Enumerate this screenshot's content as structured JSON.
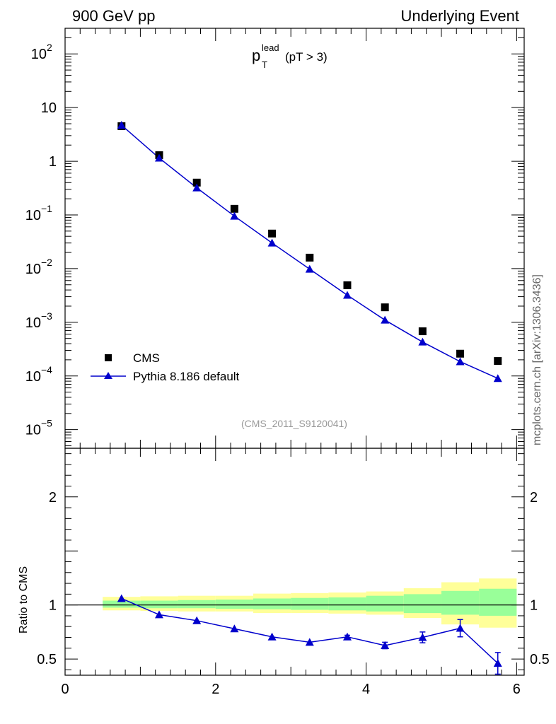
{
  "header": {
    "left": "900 GeV pp",
    "right": "Underlying Event"
  },
  "plot_title": {
    "main": "p",
    "sup": "lead",
    "sub": "T",
    "cut": "(pT >  3)"
  },
  "side_label": "mcplots.cern.ch [arXiv:1306.3436]",
  "analysis_ref": "(CMS_2011_S9120041)",
  "legend": {
    "data": "CMS",
    "mc": "Pythia 8.186 default"
  },
  "colors": {
    "data": "#000000",
    "mc": "#0000cc",
    "band_outer": "#ffff99",
    "band_inner": "#99ff99"
  },
  "chart_data": [
    {
      "type": "scatter",
      "yscale": "log",
      "xlim": [
        0,
        6.1
      ],
      "ylim": [
        4.5e-06,
        300
      ],
      "yticks": [
        {
          "v": 100,
          "m": "10",
          "e": "2"
        },
        {
          "v": 10,
          "m": "10",
          "e": ""
        },
        {
          "v": 1,
          "m": "1",
          "e": ""
        },
        {
          "v": 0.1,
          "m": "10",
          "e": "−1"
        },
        {
          "v": 0.01,
          "m": "10",
          "e": "−2"
        },
        {
          "v": 0.001,
          "m": "10",
          "e": "−3"
        },
        {
          "v": 0.0001,
          "m": "10",
          "e": "−4"
        },
        {
          "v": 1e-05,
          "m": "10",
          "e": "−5"
        }
      ],
      "series": [
        {
          "name": "CMS",
          "x": [
            0.75,
            1.25,
            1.75,
            2.25,
            2.75,
            3.25,
            3.75,
            4.25,
            4.75,
            5.25,
            5.75
          ],
          "y": [
            4.5,
            1.3,
            0.4,
            0.13,
            0.045,
            0.016,
            0.0049,
            0.0019,
            0.00068,
            0.00026,
            0.00019
          ]
        },
        {
          "name": "Pythia 8.186 default",
          "x": [
            0.75,
            1.25,
            1.75,
            2.25,
            2.75,
            3.25,
            3.75,
            4.25,
            4.75,
            5.25,
            5.75
          ],
          "y": [
            4.7,
            1.15,
            0.32,
            0.095,
            0.03,
            0.0098,
            0.0032,
            0.0011,
            0.00043,
            0.000185,
            9e-05
          ],
          "yerr": [
            0,
            0,
            0,
            0,
            0,
            0,
            0,
            0,
            0,
            0,
            1e-05
          ]
        }
      ]
    },
    {
      "type": "line",
      "ylabel": "Ratio to CMS",
      "xlim": [
        0,
        6.1
      ],
      "ylim": [
        0.35,
        2.45
      ],
      "xticks": [
        0,
        2,
        4,
        6
      ],
      "yticks": [
        0.5,
        1,
        2
      ],
      "bands": {
        "edges": [
          0.5,
          1.0,
          1.5,
          2.0,
          2.5,
          3.0,
          3.5,
          4.0,
          4.5,
          5.0,
          5.5,
          6.0
        ],
        "outer_low": [
          0.95,
          0.945,
          0.94,
          0.94,
          0.925,
          0.925,
          0.92,
          0.91,
          0.88,
          0.82,
          0.79
        ],
        "outer_high": [
          1.075,
          1.08,
          1.085,
          1.085,
          1.105,
          1.11,
          1.115,
          1.125,
          1.155,
          1.21,
          1.245
        ],
        "inner_low": [
          0.975,
          0.97,
          0.97,
          0.965,
          0.96,
          0.955,
          0.95,
          0.94,
          0.925,
          0.91,
          0.9
        ],
        "inner_high": [
          1.04,
          1.04,
          1.045,
          1.05,
          1.06,
          1.065,
          1.07,
          1.085,
          1.1,
          1.13,
          1.15
        ]
      },
      "series": [
        {
          "name": "Pythia 8.186 default",
          "x": [
            0.75,
            1.25,
            1.75,
            2.25,
            2.75,
            3.25,
            3.75,
            4.25,
            4.75,
            5.25,
            5.75
          ],
          "y": [
            1.06,
            0.91,
            0.855,
            0.78,
            0.705,
            0.655,
            0.705,
            0.625,
            0.7,
            0.785,
            0.46
          ],
          "yerr": [
            0,
            0,
            0,
            0,
            0,
            0,
            0.015,
            0.03,
            0.05,
            0.08,
            0.1
          ]
        }
      ]
    }
  ]
}
